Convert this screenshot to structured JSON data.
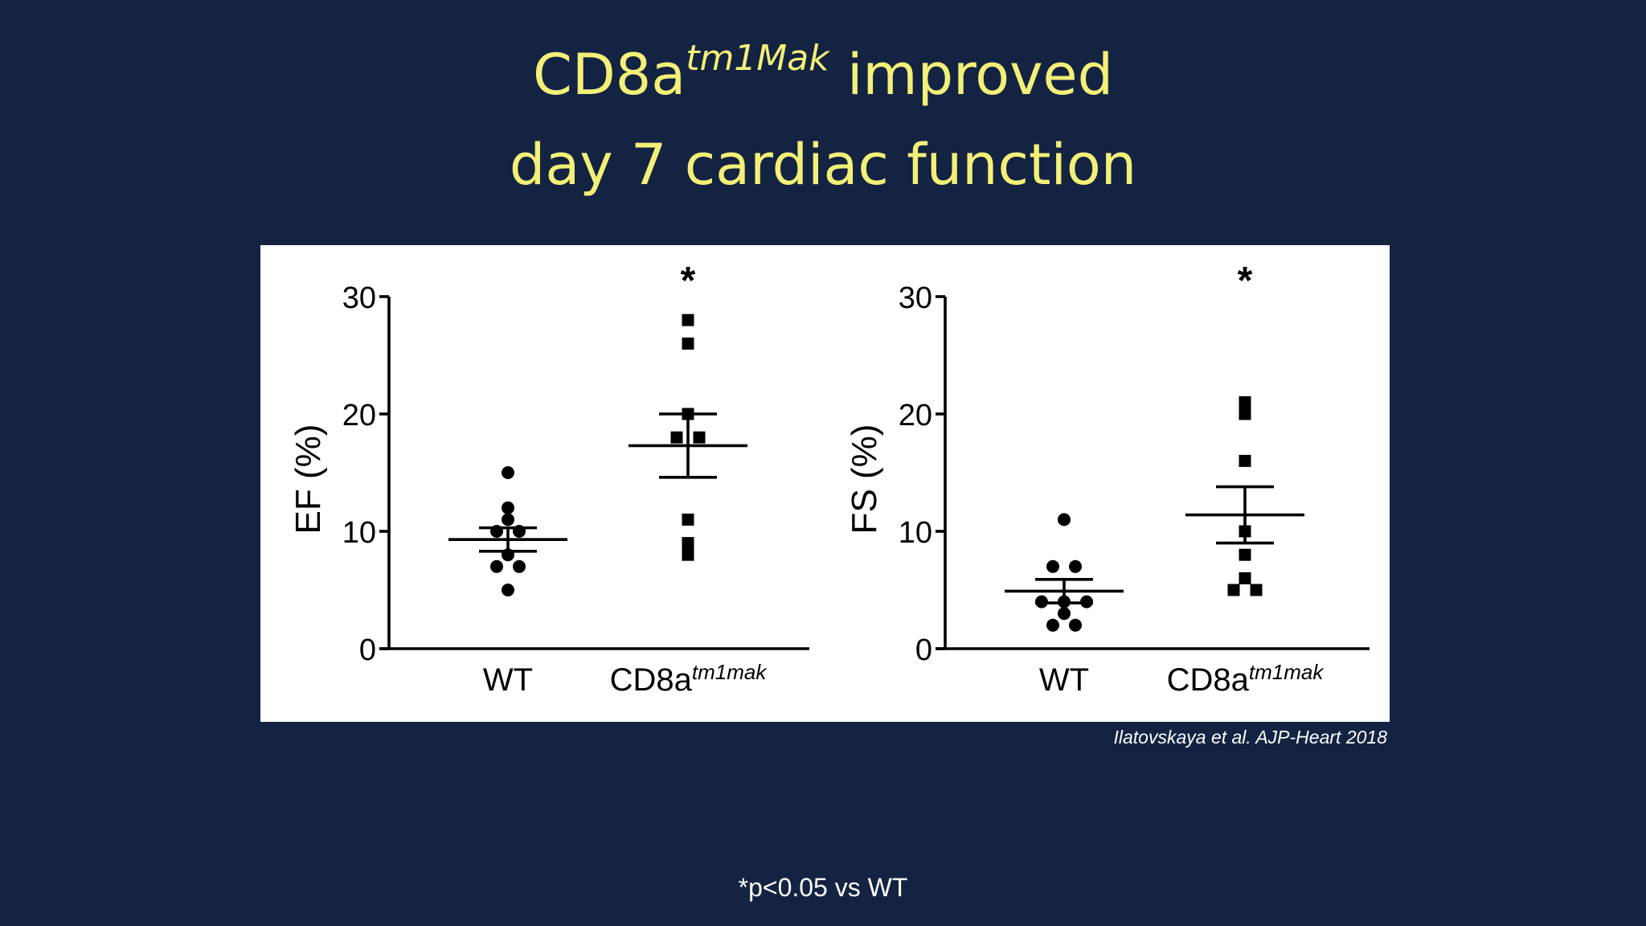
{
  "slide": {
    "title_part1": "CD8a",
    "title_sup": "tm1Mak",
    "title_part2": " improved",
    "title_line2": "day 7 cardiac function",
    "citation": "Ilatovskaya et al. AJP-Heart 2018",
    "footnote": "*p<0.05 vs WT",
    "colors": {
      "background": "#142342",
      "title": "#f3f078",
      "panel": "#ffffff",
      "marks": "#000000"
    }
  },
  "chart_data": [
    {
      "type": "scatter",
      "title": "",
      "ylabel": "EF (%)",
      "ylim": [
        0,
        30
      ],
      "yticks": [
        0,
        10,
        20,
        30
      ],
      "categories": [
        {
          "label": "WT",
          "sup": ""
        },
        {
          "label": "CD8a",
          "sup": "tm1mak"
        }
      ],
      "series": [
        {
          "marker": "circle",
          "values": [
            15,
            12,
            11,
            10,
            10,
            8,
            7,
            7,
            5
          ],
          "mean": 9.3,
          "sem_low": 8.3,
          "sem_high": 10.3,
          "significance": ""
        },
        {
          "marker": "square",
          "values": [
            28,
            26,
            20,
            18,
            18,
            11,
            9,
            8
          ],
          "mean": 17.3,
          "sem_low": 14.6,
          "sem_high": 20.0,
          "significance": "*"
        }
      ]
    },
    {
      "type": "scatter",
      "title": "",
      "ylabel": "FS (%)",
      "ylim": [
        0,
        30
      ],
      "yticks": [
        0,
        10,
        20,
        30
      ],
      "categories": [
        {
          "label": "WT",
          "sup": ""
        },
        {
          "label": "CD8a",
          "sup": "tm1mak"
        }
      ],
      "series": [
        {
          "marker": "circle",
          "values": [
            11,
            7,
            7,
            4,
            4,
            4,
            3,
            2,
            2
          ],
          "mean": 4.9,
          "sem_low": 3.9,
          "sem_high": 5.9,
          "significance": ""
        },
        {
          "marker": "square",
          "values": [
            21,
            20,
            16,
            10,
            8,
            6,
            5,
            5
          ],
          "mean": 11.4,
          "sem_low": 9.0,
          "sem_high": 13.8,
          "significance": "*"
        }
      ]
    }
  ]
}
